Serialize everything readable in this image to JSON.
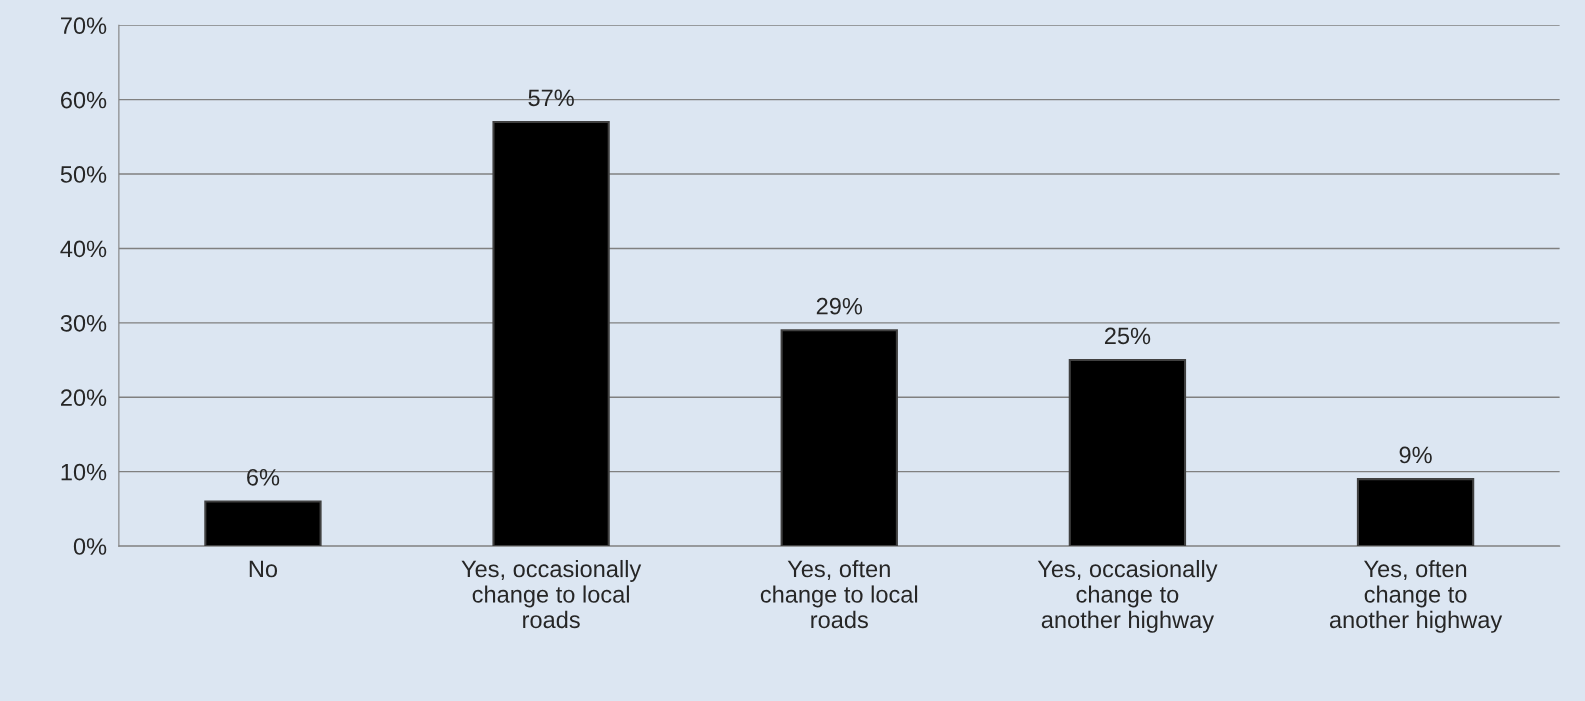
{
  "chart_data": {
    "type": "bar",
    "categories": [
      "No",
      "Yes, occasionally\nchange to local\nroads",
      "Yes, often\nchange to local\nroads",
      "Yes, occasionally\nchange to\nanother highway",
      "Yes, often\nchange to\nanother highway"
    ],
    "values": [
      6,
      57,
      29,
      25,
      9
    ],
    "value_labels": [
      "6%",
      "57%",
      "29%",
      "25%",
      "9%"
    ],
    "color": "#000000",
    "ylim": [
      0,
      70
    ],
    "yticks": [
      {
        "value": 0,
        "label": "0%"
      },
      {
        "value": 10,
        "label": "10%"
      },
      {
        "value": 20,
        "label": "20%"
      },
      {
        "value": 30,
        "label": "30%"
      },
      {
        "value": 40,
        "label": "40%"
      },
      {
        "value": 50,
        "label": "50%"
      },
      {
        "value": 60,
        "label": "60%"
      },
      {
        "value": 70,
        "label": "70%"
      }
    ],
    "grid": "y",
    "legend": false
  }
}
